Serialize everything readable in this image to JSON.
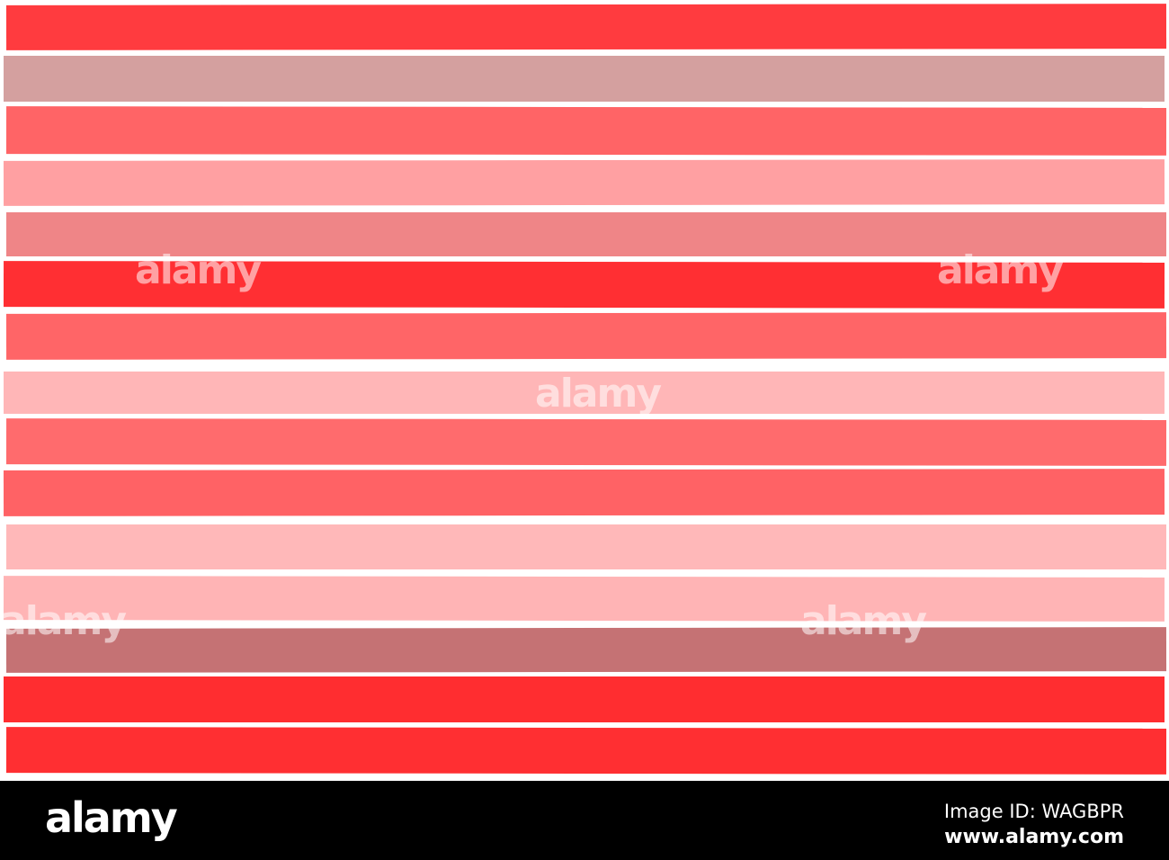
{
  "stripe_colors": [
    "#ff3b3f",
    "#d4a09f",
    "#ff6466",
    "#ffa0a2",
    "#ef8587",
    "#ff2f33",
    "#ff6567",
    "#ffb6b7",
    "#ff6b6d",
    "#ff6265",
    "#ffb8b9",
    "#ffb4b5",
    "#c57274",
    "#ff2d30",
    "#ff2f32"
  ],
  "watermark": "alamy",
  "footer": {
    "logo": "alamy",
    "image_id": "Image ID: WAGBPR",
    "website": "www.alamy.com"
  }
}
